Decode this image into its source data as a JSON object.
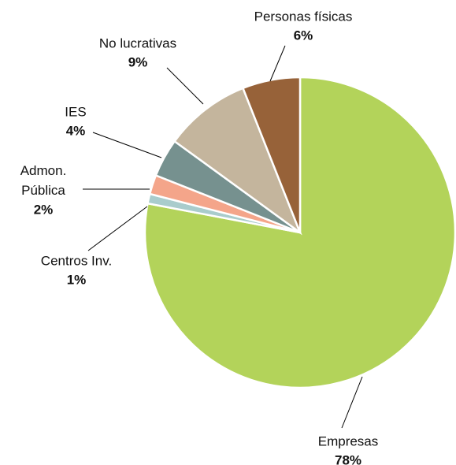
{
  "chart_data": {
    "type": "pie",
    "categories": [
      "Empresas",
      "Centros Inv.",
      "Admon. Pública",
      "IES",
      "No lucrativas",
      "Personas físicas"
    ],
    "values": [
      78,
      1,
      2,
      4,
      9,
      6
    ],
    "value_labels": [
      "78%",
      "1%",
      "2%",
      "4%",
      "9%",
      "6%"
    ],
    "colors": [
      "#b3d35a",
      "#a9cccc",
      "#f4a58a",
      "#76918f",
      "#c4b59d",
      "#976239"
    ]
  }
}
